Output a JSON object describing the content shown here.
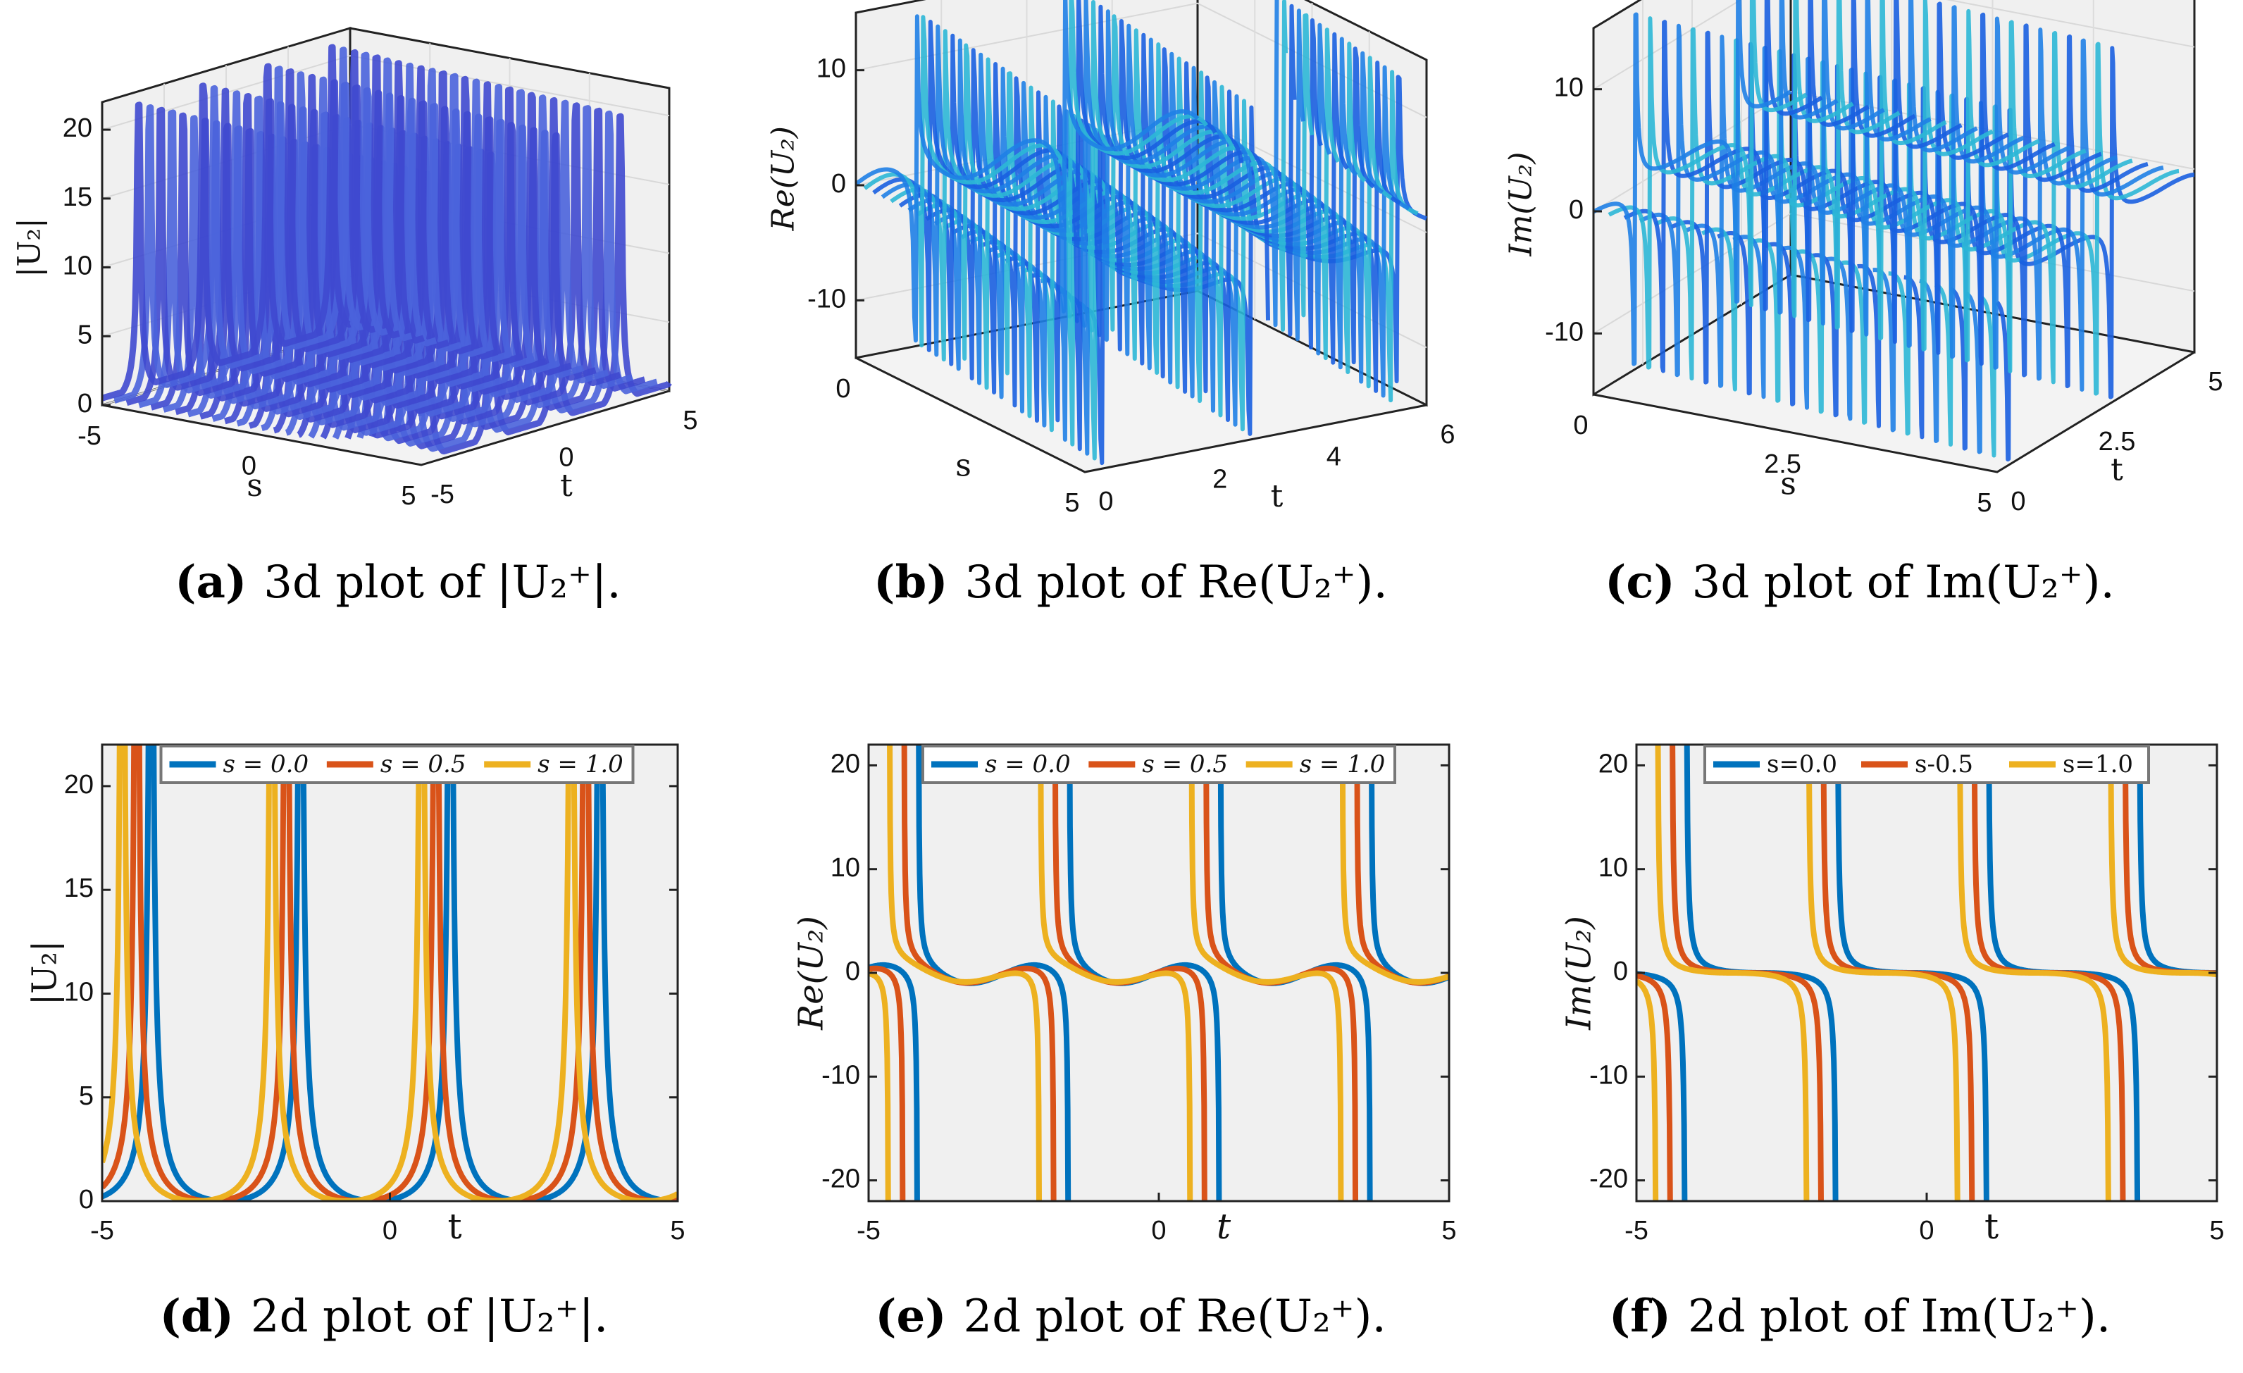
{
  "colors": {
    "blue": "#0072BD",
    "orange": "#D95319",
    "yellow": "#EDB120",
    "panel_bg": "#F0F0F0",
    "surface_light": "#4F8DF5",
    "surface_dark": "#3A2FC8",
    "mesh_cyan": "#27C4C4"
  },
  "captions": [
    {
      "letter": "(a)",
      "text": "3d plot of |U₂⁺|."
    },
    {
      "letter": "(b)",
      "text": "3d plot of Re(U₂⁺)."
    },
    {
      "letter": "(c)",
      "text": "3d plot of Im(U₂⁺)."
    },
    {
      "letter": "(d)",
      "text": "2d plot of |U₂⁺|."
    },
    {
      "letter": "(e)",
      "text": "2d plot of Re(U₂⁺)."
    },
    {
      "letter": "(f)",
      "text": "2d plot of Im(U₂⁺)."
    }
  ],
  "chart_data": [
    {
      "id": "a",
      "type": "surface3d",
      "zlabel": "|U₂|",
      "xlabel": "s",
      "ylabel": "t",
      "zticks": [
        "0",
        "5",
        "10",
        "15",
        "20"
      ],
      "sticks": [
        "-5",
        "0",
        "5"
      ],
      "tticks": [
        "-5",
        "0",
        "5"
      ],
      "zlim": [
        0,
        22
      ],
      "slim": [
        -5,
        5
      ],
      "tlim": [
        -5,
        5
      ]
    },
    {
      "id": "b",
      "type": "surface3d",
      "zlabel": "Re(U₂)",
      "xlabel": "s",
      "ylabel": "t",
      "zticks": [
        "-10",
        "0",
        "10"
      ],
      "sticks": [
        "0",
        "5"
      ],
      "tticks": [
        "0",
        "2",
        "4",
        "6"
      ],
      "zlim": [
        -15,
        15
      ],
      "slim": [
        0,
        5
      ],
      "tlim": [
        0,
        6
      ]
    },
    {
      "id": "c",
      "type": "surface3d",
      "zlabel": "Im(U₂)",
      "xlabel": "s",
      "ylabel": "t",
      "zticks": [
        "-10",
        "0",
        "10"
      ],
      "sticks": [
        "0",
        "2.5",
        "5"
      ],
      "tticks": [
        "0",
        "2.5",
        "5"
      ],
      "zlim": [
        -15,
        15
      ],
      "slim": [
        0,
        5
      ],
      "tlim": [
        0,
        5
      ]
    },
    {
      "id": "d",
      "type": "line",
      "func": "abs",
      "xlabel": "t",
      "ylabel": "|U₂|",
      "xlim": [
        -5,
        5
      ],
      "ylim": [
        0,
        22
      ],
      "xticks": [
        "-5",
        "0",
        "5"
      ],
      "yticks": [
        "0",
        "5",
        "10",
        "15",
        "20"
      ],
      "x": {
        "start": -5,
        "end": 5,
        "samples": 1001
      },
      "series": [
        {
          "name": "s = 0.0",
          "s": 0.0,
          "color": "#0072BD"
        },
        {
          "name": "s = 0.5",
          "s": 0.5,
          "color": "#D95319"
        },
        {
          "name": "s = 1.0",
          "s": 1.0,
          "color": "#EDB120"
        }
      ]
    },
    {
      "id": "e",
      "type": "line",
      "func": "re",
      "xlabel": "t",
      "ylabel": "Re(U₂)",
      "xlim": [
        -5,
        5
      ],
      "ylim": [
        -22,
        22
      ],
      "xticks": [
        "-5",
        "0",
        "5"
      ],
      "yticks": [
        "-20",
        "-10",
        "0",
        "10",
        "20"
      ],
      "x": {
        "start": -5,
        "end": 5,
        "samples": 1001
      },
      "series": [
        {
          "name": "s = 0.0",
          "s": 0.0,
          "color": "#0072BD"
        },
        {
          "name": "s = 0.5",
          "s": 0.5,
          "color": "#D95319"
        },
        {
          "name": "s = 1.0",
          "s": 1.0,
          "color": "#EDB120"
        }
      ]
    },
    {
      "id": "f",
      "type": "line",
      "func": "im",
      "xlabel": "t",
      "ylabel": "Im(U₂)",
      "xlim": [
        -5,
        5
      ],
      "ylim": [
        -22,
        22
      ],
      "xticks": [
        "-5",
        "0",
        "5"
      ],
      "yticks": [
        "-20",
        "-10",
        "0",
        "10",
        "20"
      ],
      "x": {
        "start": -5,
        "end": 5,
        "samples": 1001
      },
      "series": [
        {
          "name": "s=0.0",
          "s": 0.0,
          "color": "#0072BD"
        },
        {
          "name": "s-0.5",
          "s": 0.5,
          "color": "#D95319"
        },
        {
          "name": "s=1.0",
          "s": 1.0,
          "color": "#EDB120"
        }
      ]
    }
  ]
}
